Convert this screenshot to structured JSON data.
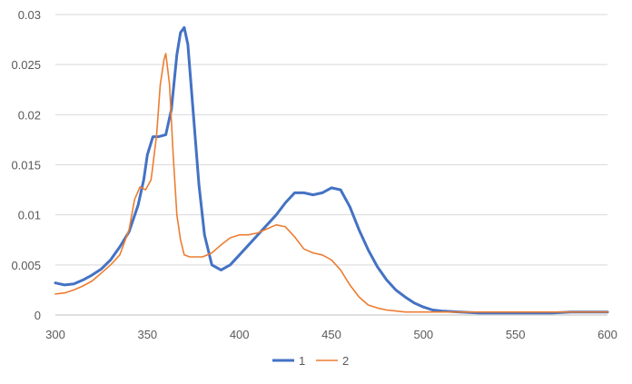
{
  "chart_data": {
    "type": "line",
    "xlim": [
      300,
      600
    ],
    "ylim": [
      0,
      0.03
    ],
    "x_ticks": [
      "300",
      "350",
      "400",
      "450",
      "500",
      "550",
      "600"
    ],
    "y_ticks": [
      "0",
      "0.005",
      "0.01",
      "0.015",
      "0.02",
      "0.025",
      "0.03"
    ],
    "grid": "horizontal",
    "legend_position": "bottom",
    "series": [
      {
        "name": "1",
        "color": "#4472C4",
        "x": [
          300,
          305,
          310,
          315,
          320,
          325,
          330,
          335,
          340,
          345,
          348,
          350,
          353,
          356,
          360,
          363,
          366,
          368,
          370,
          372,
          375,
          378,
          381,
          385,
          390,
          395,
          400,
          405,
          410,
          415,
          420,
          425,
          430,
          435,
          440,
          445,
          450,
          455,
          460,
          465,
          470,
          475,
          480,
          485,
          490,
          495,
          500,
          505,
          510,
          520,
          530,
          540,
          550,
          560,
          570,
          580,
          590,
          600
        ],
        "y": [
          0.0032,
          0.003,
          0.0031,
          0.0035,
          0.004,
          0.0046,
          0.0055,
          0.0068,
          0.0083,
          0.011,
          0.0135,
          0.016,
          0.0178,
          0.0178,
          0.018,
          0.0205,
          0.026,
          0.0282,
          0.0287,
          0.027,
          0.02,
          0.013,
          0.008,
          0.005,
          0.0045,
          0.005,
          0.006,
          0.007,
          0.008,
          0.009,
          0.01,
          0.0112,
          0.0122,
          0.0122,
          0.012,
          0.0122,
          0.0127,
          0.0125,
          0.0108,
          0.0085,
          0.0065,
          0.0048,
          0.0035,
          0.0025,
          0.0018,
          0.0012,
          0.0008,
          0.0005,
          0.0004,
          0.0003,
          0.0002,
          0.0002,
          0.0002,
          0.0002,
          0.0002,
          0.0003,
          0.0003,
          0.0003
        ]
      },
      {
        "name": "2",
        "color": "#ED7D31",
        "x": [
          300,
          305,
          310,
          315,
          320,
          325,
          330,
          335,
          340,
          343,
          346,
          349,
          352,
          355,
          357,
          359,
          360,
          362,
          364,
          366,
          368,
          370,
          373,
          376,
          380,
          385,
          390,
          395,
          400,
          405,
          410,
          415,
          420,
          425,
          430,
          435,
          440,
          445,
          450,
          455,
          460,
          465,
          470,
          475,
          480,
          485,
          490,
          500,
          510,
          520,
          550,
          600
        ],
        "y": [
          0.0021,
          0.0022,
          0.0025,
          0.0029,
          0.0034,
          0.0042,
          0.005,
          0.006,
          0.0085,
          0.0115,
          0.0128,
          0.0125,
          0.0135,
          0.018,
          0.023,
          0.0255,
          0.0261,
          0.023,
          0.016,
          0.01,
          0.0075,
          0.006,
          0.0058,
          0.0058,
          0.0058,
          0.0062,
          0.007,
          0.0077,
          0.008,
          0.008,
          0.0082,
          0.0086,
          0.009,
          0.0088,
          0.0078,
          0.0066,
          0.0062,
          0.006,
          0.0055,
          0.0045,
          0.003,
          0.0018,
          0.001,
          0.0007,
          0.0005,
          0.0004,
          0.0003,
          0.0003,
          0.0003,
          0.0003,
          0.0003,
          0.0003
        ]
      }
    ]
  }
}
